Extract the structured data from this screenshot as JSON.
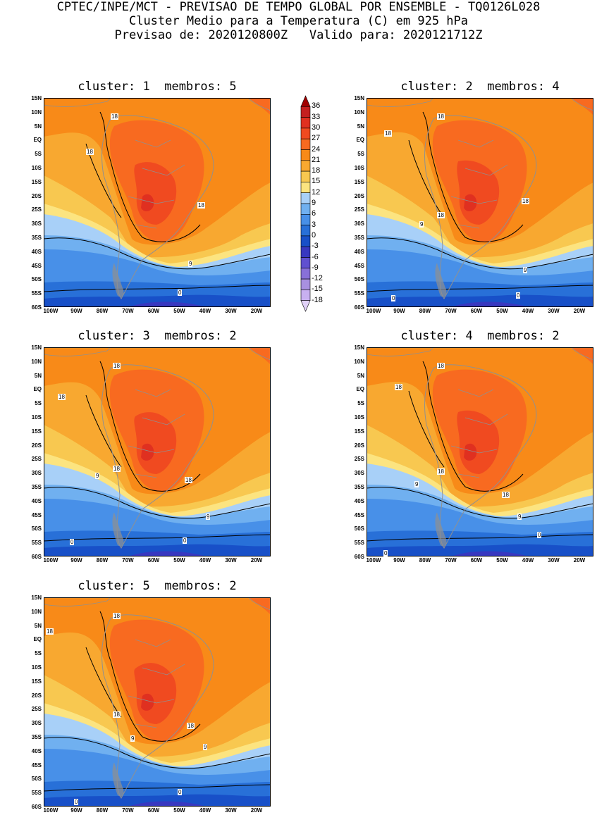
{
  "header": {
    "line1": "CPTEC/INPE/MCT - PREVISAO DE TEMPO GLOBAL POR ENSEMBLE - TQ0126L028",
    "line2": "Cluster Medio para a Temperatura (C) em 925 hPa",
    "line3": "Previsao de: 2020120800Z   Valido para: 2020121712Z"
  },
  "clusters": [
    {
      "title": "cluster: 1  membros: 5"
    },
    {
      "title": "cluster: 2  membros: 4"
    },
    {
      "title": "cluster: 3  membros: 2"
    },
    {
      "title": "cluster: 4  membros: 2"
    },
    {
      "title": "cluster: 5  membros: 2"
    }
  ],
  "axes": {
    "lat_ticks": [
      "15N",
      "10N",
      "5N",
      "EQ",
      "5S",
      "10S",
      "15S",
      "20S",
      "25S",
      "30S",
      "35S",
      "40S",
      "45S",
      "50S",
      "55S",
      "60S"
    ],
    "lon_ticks": [
      "100W",
      "90W",
      "80W",
      "70W",
      "60W",
      "50W",
      "40W",
      "30W",
      "20W"
    ]
  },
  "colorbar": {
    "levels": [
      "36",
      "33",
      "30",
      "27",
      "24",
      "21",
      "18",
      "15",
      "12",
      "9",
      "6",
      "3",
      "0",
      "-3",
      "-6",
      "-9",
      "-12",
      "-15",
      "-18"
    ],
    "colors": [
      "#a00000",
      "#c42020",
      "#e03020",
      "#f04a20",
      "#f86a20",
      "#f88a18",
      "#f8a830",
      "#f8c850",
      "#fce480",
      "#a8d0f8",
      "#70b0f0",
      "#4890e8",
      "#2870d8",
      "#1850c8",
      "#3838c0",
      "#6050d0",
      "#8870d8",
      "#a890e0",
      "#c8b0f0",
      "#e0d0f8"
    ]
  },
  "contour_labels": {
    "c18": "18",
    "c9": "9",
    "c0": "0"
  }
}
